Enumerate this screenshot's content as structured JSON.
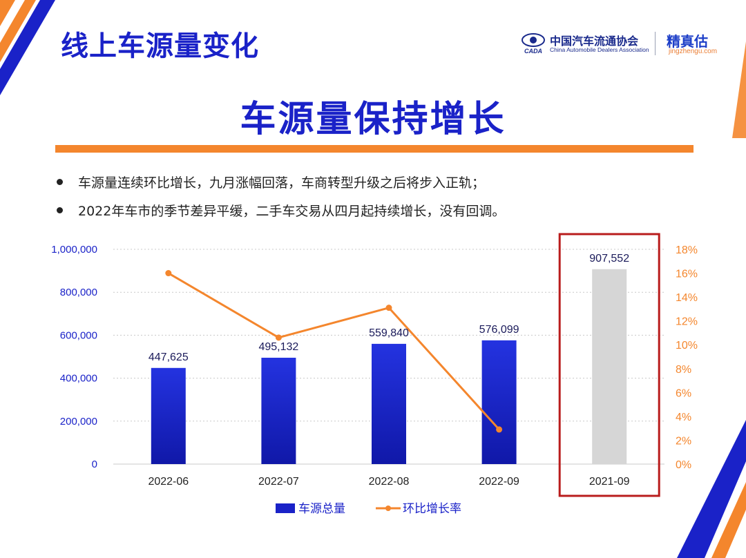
{
  "page": {
    "title": "线上车源量变化",
    "headline": "车源量保持增长",
    "bullets": [
      "车源量连续环比增长，九月涨幅回落，车商转型升级之后将步入正轨；",
      "2022年车市的季节差异平缓，二手车交易从四月起持续增长，没有回调。"
    ]
  },
  "logos": {
    "cada_cn": "中国汽车流通协会",
    "cada_en": "China Automobile Dealers Association",
    "cada_mark": "CADA",
    "jzg_cn": "精真估",
    "jzg_url": "jingzhengu.com"
  },
  "colors": {
    "brand_blue": "#1a22c8",
    "accent_orange": "#f4862d",
    "highlight_box": "#b91c1c",
    "bar_gray": "#d6d6d6"
  },
  "chart_data": {
    "type": "bar",
    "categories": [
      "2022-06",
      "2022-07",
      "2022-08",
      "2022-09",
      "2021-09"
    ],
    "series": [
      {
        "name": "车源总量",
        "type": "bar",
        "axis": "left",
        "values": [
          447625,
          495132,
          559840,
          576099,
          907552
        ],
        "labels": [
          "447,625",
          "495,132",
          "559,840",
          "576,099",
          "907,552"
        ],
        "colors": [
          "#1a22c8",
          "#1a22c8",
          "#1a22c8",
          "#1a22c8",
          "#d6d6d6"
        ]
      },
      {
        "name": "环比增长率",
        "type": "line",
        "axis": "right",
        "values": [
          16.0,
          10.6,
          13.1,
          2.9,
          null
        ],
        "color": "#f4862d"
      }
    ],
    "left_axis": {
      "ylim": [
        0,
        1000000
      ],
      "ticks": [
        0,
        200000,
        400000,
        600000,
        800000,
        1000000
      ],
      "tick_labels": [
        "0",
        "200,000",
        "400,000",
        "600,000",
        "800,000",
        "1,000,000"
      ]
    },
    "right_axis": {
      "ylim": [
        0,
        18
      ],
      "ticks": [
        0,
        2,
        4,
        6,
        8,
        10,
        12,
        14,
        16,
        18
      ],
      "tick_labels": [
        "0%",
        "2%",
        "4%",
        "6%",
        "8%",
        "10%",
        "12%",
        "14%",
        "16%",
        "18%"
      ]
    },
    "highlight_category": "2021-09",
    "grid": true,
    "legend": "bottom"
  }
}
